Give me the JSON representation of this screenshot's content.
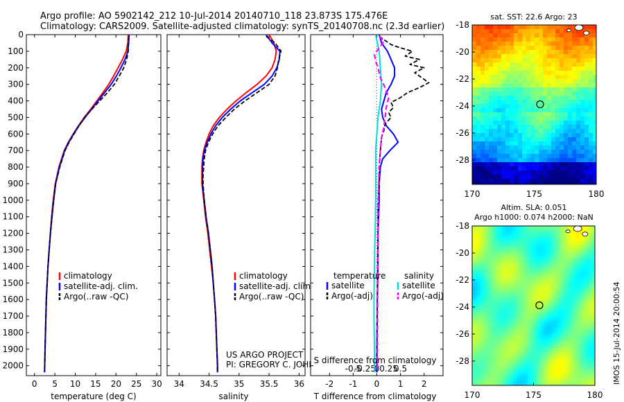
{
  "header": {
    "line1": "Argo profile: AO 5902142_212 10-Jul-2014 20140710_118 23.873S 175.476E",
    "line2": "Climatology: CARS2009. Satellite-adjusted climatology: synTS_20140708.nc (2.3d earlier)"
  },
  "colors": {
    "climatology": "#ff0000",
    "satellite": "#0000ff",
    "argo": "#000000",
    "salinity_satellite": "#00dddd",
    "salinity_argo": "#ff00ff"
  },
  "chart_data": [
    {
      "id": "temperature",
      "type": "line",
      "xlabel": "temperature (deg C)",
      "ylabel": "",
      "xlim": [
        -2,
        31
      ],
      "ylim": [
        2060,
        0
      ],
      "xticks": [
        0,
        5,
        10,
        15,
        20,
        25,
        30
      ],
      "yticks": [
        0,
        100,
        200,
        300,
        400,
        500,
        600,
        700,
        800,
        900,
        1000,
        1100,
        1200,
        1300,
        1400,
        1500,
        1600,
        1700,
        1800,
        1900,
        2000
      ],
      "legend": [
        "climatology",
        "satellite-adj. clim.",
        "Argo(..raw -QC)"
      ],
      "series": [
        {
          "name": "climatology",
          "style": "red",
          "depth": [
            0,
            50,
            100,
            150,
            200,
            250,
            300,
            350,
            400,
            450,
            500,
            550,
            600,
            650,
            700,
            800,
            900,
            1000,
            1100,
            1200,
            1300,
            1400,
            1500,
            1600,
            1700,
            1800,
            1900,
            2000,
            2040
          ],
          "values": [
            23.0,
            22.9,
            22.5,
            21.6,
            20.5,
            19.4,
            18.2,
            16.8,
            15.3,
            13.8,
            12.2,
            10.8,
            9.5,
            8.3,
            7.3,
            6.0,
            5.1,
            4.6,
            4.2,
            3.9,
            3.6,
            3.3,
            3.1,
            2.9,
            2.8,
            2.7,
            2.6,
            2.5,
            2.45
          ]
        },
        {
          "name": "satellite-adj. clim.",
          "style": "blue",
          "depth": [
            0,
            50,
            100,
            150,
            200,
            250,
            300,
            350,
            400,
            450,
            500,
            550,
            600,
            650,
            700,
            800,
            900,
            1000,
            1100,
            1200,
            1300,
            1400,
            1500,
            1600,
            1700,
            1800,
            1900,
            2000,
            2040
          ],
          "values": [
            23.2,
            23.1,
            22.9,
            22.2,
            21.2,
            20.1,
            18.8,
            17.2,
            15.6,
            14.0,
            12.4,
            10.9,
            9.6,
            8.4,
            7.4,
            6.1,
            5.2,
            4.7,
            4.3,
            3.9,
            3.6,
            3.3,
            3.1,
            2.9,
            2.8,
            2.7,
            2.6,
            2.5,
            2.45
          ]
        },
        {
          "name": "Argo(..raw -QC)",
          "style": "black-dash",
          "depth": [
            10,
            50,
            100,
            150,
            200,
            250,
            300,
            350,
            400,
            450,
            500,
            550,
            600,
            650,
            700,
            800,
            900,
            1000,
            1100,
            1200,
            1300,
            1400,
            1500,
            1600,
            1700,
            1800,
            1900,
            2000,
            2030
          ],
          "values": [
            23.1,
            23.0,
            23.0,
            22.6,
            21.9,
            20.8,
            19.6,
            17.9,
            16.0,
            14.1,
            12.3,
            10.9,
            9.7,
            8.5,
            7.5,
            6.2,
            5.2,
            4.7,
            4.3,
            3.9,
            3.6,
            3.3,
            3.1,
            2.9,
            2.8,
            2.7,
            2.6,
            2.5,
            2.45
          ]
        }
      ]
    },
    {
      "id": "salinity",
      "type": "line",
      "xlabel": "salinity",
      "ylabel": "",
      "xlim": [
        33.8,
        36.1
      ],
      "ylim": [
        2060,
        0
      ],
      "xticks": [
        34,
        34.5,
        35,
        35.5,
        36
      ],
      "xticklabels": [
        "34",
        "34.5",
        "35",
        "35.5",
        "36"
      ],
      "legend": [
        "climatology",
        "satellite-adj. clim.",
        "Argo(..raw -QC)"
      ],
      "annotation": [
        "US ARGO PROJECT",
        "PI: GREGORY C. JOHNSON"
      ],
      "series": [
        {
          "name": "climatology",
          "style": "red",
          "depth": [
            0,
            50,
            100,
            150,
            200,
            250,
            300,
            350,
            400,
            450,
            500,
            550,
            600,
            650,
            700,
            750,
            800,
            850,
            900,
            1000,
            1100,
            1200,
            1300,
            1400,
            1500,
            1600,
            1700,
            1800,
            1900,
            2000,
            2040
          ],
          "values": [
            35.5,
            35.58,
            35.62,
            35.6,
            35.55,
            35.45,
            35.3,
            35.12,
            34.95,
            34.8,
            34.67,
            34.57,
            34.5,
            34.45,
            34.41,
            34.39,
            34.38,
            34.38,
            34.38,
            34.41,
            34.44,
            34.48,
            34.51,
            34.54,
            34.57,
            34.59,
            34.61,
            34.62,
            34.63,
            34.64,
            34.64
          ]
        },
        {
          "name": "satellite-adj. clim.",
          "style": "blue",
          "depth": [
            0,
            50,
            100,
            150,
            200,
            250,
            300,
            350,
            400,
            450,
            500,
            550,
            600,
            650,
            700,
            750,
            800,
            850,
            900,
            1000,
            1100,
            1200,
            1300,
            1400,
            1500,
            1600,
            1700,
            1800,
            1900,
            2000,
            2040
          ],
          "values": [
            35.45,
            35.55,
            35.68,
            35.67,
            35.63,
            35.55,
            35.42,
            35.22,
            35.02,
            34.86,
            34.72,
            34.61,
            34.53,
            34.47,
            34.42,
            34.4,
            34.39,
            34.39,
            34.39,
            34.42,
            34.45,
            34.49,
            34.52,
            34.55,
            34.57,
            34.59,
            34.61,
            34.62,
            34.63,
            34.64,
            34.64
          ]
        },
        {
          "name": "Argo(..raw -QC)",
          "style": "black-dash",
          "depth": [
            10,
            50,
            100,
            150,
            200,
            250,
            300,
            350,
            400,
            450,
            500,
            550,
            600,
            650,
            700,
            750,
            800,
            850,
            900,
            1000,
            1100,
            1200,
            1300,
            1400,
            1500,
            1600,
            1700,
            1800,
            1900,
            2000,
            2030
          ],
          "values": [
            35.45,
            35.6,
            35.7,
            35.66,
            35.64,
            35.6,
            35.5,
            35.3,
            35.1,
            34.92,
            34.78,
            34.65,
            34.56,
            34.49,
            34.44,
            34.42,
            34.41,
            34.4,
            34.4,
            34.42,
            34.45,
            34.49,
            34.52,
            34.55,
            34.57,
            34.59,
            34.61,
            34.62,
            34.63,
            34.64,
            34.64
          ]
        }
      ]
    },
    {
      "id": "difference",
      "type": "line",
      "xlabel": "T difference from climatology",
      "top_xlabel": "S difference from climatology",
      "xlim": [
        -2.8,
        2.8
      ],
      "ylim": [
        2060,
        0
      ],
      "xticks": [
        -2,
        -1,
        0,
        1,
        2
      ],
      "xticklabels": [
        "-2",
        "-1",
        "0",
        "1",
        "2"
      ],
      "s_xticks": [
        -1,
        -0.5,
        0,
        0.5,
        1
      ],
      "s_xticklabels": [
        "-0.5",
        "-0.25",
        "0",
        "0.25",
        "0.5"
      ],
      "legend_titles": [
        "temperature",
        "salinity"
      ],
      "legend": [
        "satellite",
        "Argo(-adj)",
        "satellite",
        "Argo(-adj)"
      ],
      "series": [
        {
          "name": "temperature satellite",
          "style": "blue",
          "depth": [
            0,
            50,
            100,
            150,
            200,
            250,
            300,
            350,
            400,
            450,
            500,
            550,
            600,
            650,
            700,
            750,
            800,
            900,
            1000,
            1200,
            1400,
            1600,
            1800,
            2000,
            2040
          ],
          "values": [
            0.1,
            0.2,
            0.45,
            0.6,
            0.75,
            0.75,
            0.6,
            0.4,
            0.3,
            0.2,
            0.25,
            0.4,
            0.7,
            0.9,
            0.55,
            0.25,
            0.15,
            0.1,
            0.1,
            0.05,
            0.05,
            0.02,
            0.01,
            0.0,
            0.0
          ]
        },
        {
          "name": "temperature Argo(-adj)",
          "style": "black-dash",
          "depth": [
            10,
            30,
            60,
            80,
            100,
            130,
            150,
            180,
            200,
            230,
            260,
            290,
            320,
            350,
            380,
            410,
            440,
            470,
            500,
            540,
            580,
            620,
            700,
            800,
            900,
            1000,
            1200,
            1400,
            1600,
            1800,
            2000,
            2030
          ],
          "values": [
            0.1,
            0.3,
            0.6,
            1.0,
            1.5,
            1.2,
            1.8,
            1.4,
            2.0,
            1.6,
            1.9,
            2.2,
            1.8,
            1.3,
            1.0,
            0.6,
            0.7,
            0.5,
            0.6,
            0.35,
            0.3,
            0.2,
            0.15,
            0.1,
            0.1,
            0.05,
            0.05,
            0.03,
            0.02,
            0.01,
            0.0,
            0.0
          ]
        },
        {
          "name": "salinity satellite",
          "style": "cyan",
          "depth": [
            0,
            100,
            200,
            300,
            400,
            500,
            600,
            700,
            800,
            900,
            1000,
            1100,
            1200,
            1300,
            1400,
            1500,
            1600,
            1700,
            1800,
            1900,
            2000,
            2040
          ],
          "values": [
            -0.05,
            0.1,
            0.15,
            0.2,
            0.15,
            0.05,
            0.0,
            -0.05,
            -0.05,
            -0.05,
            -0.05,
            -0.06,
            -0.07,
            -0.09,
            -0.1,
            -0.11,
            -0.12,
            -0.12,
            -0.11,
            -0.1,
            -0.1,
            -0.1
          ]
        },
        {
          "name": "salinity Argo(-adj)",
          "style": "magenta-dash",
          "depth": [
            10,
            40,
            80,
            120,
            160,
            200,
            260,
            320,
            380,
            440,
            500,
            560,
            620,
            700,
            800,
            900,
            1000,
            1200,
            1400,
            1600,
            1800,
            2000,
            2030
          ],
          "values": [
            0.1,
            0.3,
            0.1,
            -0.1,
            -0.05,
            0.05,
            0.15,
            0.35,
            0.5,
            0.4,
            0.35,
            0.3,
            0.2,
            0.15,
            0.1,
            0.08,
            0.06,
            0.05,
            0.04,
            0.03,
            0.02,
            0.02,
            0.02
          ]
        }
      ]
    },
    {
      "id": "sst-map",
      "type": "heatmap",
      "title": "sat. SST: 22.6 Argo: 23",
      "xlim": [
        170,
        180
      ],
      "ylim": [
        -29.8,
        -18
      ],
      "xticks": [
        170,
        175,
        180
      ],
      "yticks": [
        -18,
        -20,
        -22,
        -24,
        -26,
        -28
      ],
      "marker": {
        "lon": 175.476,
        "lat": -23.873
      }
    },
    {
      "id": "sla-map",
      "type": "heatmap",
      "title_line1": "Altim. SLA: 0.051",
      "title_line2": "Argo h1000: 0.074 h2000: NaN",
      "xlim": [
        170,
        180
      ],
      "ylim": [
        -29.8,
        -18
      ],
      "xticks": [
        170,
        175,
        180
      ],
      "yticks": [
        -18,
        -20,
        -22,
        -24,
        -26,
        -28
      ],
      "marker": {
        "lon": 175.476,
        "lat": -23.873
      }
    }
  ],
  "footer": {
    "stamp": "IMOS 15-Jul-2014 20:00:54"
  }
}
